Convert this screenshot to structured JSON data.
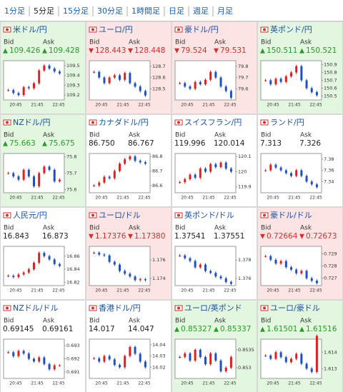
{
  "tabs": [
    {
      "label": "1分足",
      "selected": false
    },
    {
      "label": "5分足",
      "selected": true
    },
    {
      "label": "15分足",
      "selected": false
    },
    {
      "label": "30分足",
      "selected": false
    },
    {
      "label": "1時間足",
      "selected": false
    },
    {
      "label": "日足",
      "selected": false
    },
    {
      "label": "週足",
      "selected": false
    },
    {
      "label": "月足",
      "selected": false
    }
  ],
  "bid_label": "Bid",
  "ask_label": "Ask",
  "time_labels": [
    "20:45",
    "21:45",
    "22:45"
  ],
  "tiles": [
    {
      "name": "米ドル/円",
      "trend": "up",
      "arrow": "▲",
      "bid": "109.426",
      "ask": "109.428",
      "ylim": [
        109.15,
        109.55
      ],
      "yticks": [
        109.2,
        109.3,
        109.4,
        109.5
      ],
      "closes": [
        109.25,
        109.22,
        109.2,
        109.28,
        109.27,
        109.32,
        109.45,
        109.5,
        109.47,
        109.44,
        109.42
      ]
    },
    {
      "name": "ユーロ/円",
      "trend": "down",
      "arrow": "▼",
      "bid": "128.443",
      "ask": "128.448",
      "ylim": [
        128.4,
        128.75
      ],
      "yticks": [
        128.5,
        128.6,
        128.7
      ],
      "closes": [
        128.65,
        128.6,
        128.55,
        128.6,
        128.62,
        128.58,
        128.64,
        128.55,
        128.52,
        128.48,
        128.44
      ]
    },
    {
      "name": "豪ドル/円",
      "trend": "down",
      "arrow": "▼",
      "bid": "79.524",
      "ask": "79.531",
      "ylim": [
        79.5,
        79.85
      ],
      "yticks": [
        79.6,
        79.7,
        79.8
      ],
      "closes": [
        79.65,
        79.62,
        79.6,
        79.66,
        79.64,
        79.68,
        79.75,
        79.7,
        79.62,
        79.58,
        79.52
      ]
    },
    {
      "name": "英ポンド/円",
      "trend": "up",
      "arrow": "▲",
      "bid": "150.511",
      "ask": "150.521",
      "ylim": [
        150.45,
        150.95
      ],
      "yticks": [
        150.5,
        150.6,
        150.7,
        150.8,
        150.9
      ],
      "closes": [
        150.7,
        150.65,
        150.72,
        150.68,
        150.75,
        150.8,
        150.88,
        150.7,
        150.6,
        150.55,
        150.51
      ]
    },
    {
      "name": "NZドル/円",
      "trend": "up",
      "arrow": "▲",
      "bid": "75.663",
      "ask": "75.675",
      "ylim": [
        75.58,
        75.82
      ],
      "yticks": [
        75.6,
        75.7,
        75.8
      ],
      "closes": [
        75.7,
        75.68,
        75.66,
        75.72,
        75.68,
        75.62,
        75.7,
        75.74,
        75.72,
        75.65,
        75.66
      ]
    },
    {
      "name": "カナダドル/円",
      "trend": "none",
      "arrow": null,
      "bid": "86.750",
      "ask": "86.767",
      "ylim": [
        86.55,
        86.82
      ],
      "yticks": [
        86.6,
        86.7,
        86.8
      ],
      "closes": [
        86.6,
        86.62,
        86.66,
        86.65,
        86.7,
        86.75,
        86.78,
        86.8,
        86.77,
        86.76,
        86.75
      ]
    },
    {
      "name": "スイスフラン/円",
      "trend": "none",
      "arrow": null,
      "bid": "119.996",
      "ask": "120.014",
      "ylim": [
        119.86,
        120.12
      ],
      "yticks": [
        119.9,
        120,
        120.1
      ],
      "closes": [
        119.93,
        119.95,
        119.98,
        119.96,
        120.02,
        120.0,
        120.05,
        120.03,
        120.06,
        120.02,
        120.0
      ]
    },
    {
      "name": "ランド/円",
      "trend": "none",
      "arrow": null,
      "bid": "7.313",
      "ask": "7.326",
      "ylim": [
        7.32,
        7.39
      ],
      "yticks": [
        7.34,
        7.36,
        7.38
      ],
      "closes": [
        7.36,
        7.37,
        7.365,
        7.36,
        7.355,
        7.35,
        7.36,
        7.35,
        7.34,
        7.335,
        7.33
      ]
    },
    {
      "name": "人民元/円",
      "trend": "none",
      "arrow": null,
      "bid": "16.843",
      "ask": "16.873",
      "ylim": [
        16.815,
        16.875
      ],
      "yticks": [
        16.82,
        16.84,
        16.86
      ],
      "closes": [
        16.83,
        16.828,
        16.832,
        16.835,
        16.84,
        16.85,
        16.865,
        16.86,
        16.855,
        16.848,
        16.845
      ]
    },
    {
      "name": "ユーロ/ドル",
      "trend": "down",
      "arrow": "▼",
      "bid": "1.17376",
      "ask": "1.17380",
      "ylim": [
        1.1732,
        1.1775
      ],
      "yticks": [
        1.174,
        1.176
      ],
      "closes": [
        1.1768,
        1.1766,
        1.1765,
        1.1758,
        1.1755,
        1.1748,
        1.1745,
        1.1742,
        1.1738,
        1.1739,
        1.1738
      ]
    },
    {
      "name": "英ポンド/ドル",
      "trend": "none",
      "arrow": null,
      "bid": "1.37541",
      "ask": "1.37551",
      "ylim": [
        1.3752,
        1.3795
      ],
      "yticks": [
        1.376,
        1.378
      ],
      "closes": [
        1.3785,
        1.3782,
        1.3779,
        1.3772,
        1.3775,
        1.3768,
        1.3766,
        1.3762,
        1.376,
        1.3756,
        1.3754
      ]
    },
    {
      "name": "豪ドル/ドル",
      "trend": "down",
      "arrow": "▼",
      "bid": "0.72664",
      "ask": "0.72673",
      "ylim": [
        0.7264,
        0.7296
      ],
      "yticks": [
        0.727,
        0.728,
        0.729
      ],
      "closes": [
        0.7288,
        0.7285,
        0.7282,
        0.7284,
        0.7279,
        0.7277,
        0.7274,
        0.7276,
        0.727,
        0.7268,
        0.7266
      ]
    },
    {
      "name": "NZドル/ドル",
      "trend": "none",
      "arrow": null,
      "bid": "0.69145",
      "ask": "0.69161",
      "ylim": [
        0.6905,
        0.6935
      ],
      "yticks": [
        0.691,
        0.692,
        0.693
      ],
      "closes": [
        0.6925,
        0.6922,
        0.6926,
        0.6924,
        0.692,
        0.6918,
        0.6921,
        0.6916,
        0.6912,
        0.6915,
        0.6915
      ]
    },
    {
      "name": "香港ドル/円",
      "trend": "none",
      "arrow": null,
      "bid": "14.017",
      "ask": "14.047",
      "ylim": [
        14.01,
        14.045
      ],
      "yticks": [
        14.02,
        14.03,
        14.04
      ],
      "closes": [
        14.028,
        14.025,
        14.03,
        14.027,
        14.022,
        14.02,
        14.03,
        14.038,
        14.032,
        14.025,
        14.02
      ]
    },
    {
      "name": "ユーロ/英ポンド",
      "trend": "up",
      "arrow": "▲",
      "bid": "0.85327",
      "ask": "0.85337",
      "ylim": [
        0.8527,
        0.8538
      ],
      "yticks": [
        0.853,
        0.8535
      ],
      "closes": [
        0.8533,
        0.8534,
        0.8532,
        0.8535,
        0.8533,
        0.8531,
        0.8534,
        0.8532,
        0.8529,
        0.853,
        0.8533
      ]
    },
    {
      "name": "ユーロ/豪ドル",
      "trend": "up",
      "arrow": "▲",
      "bid": "1.61501",
      "ask": "1.61516",
      "ylim": [
        1.6124,
        1.6148
      ],
      "yticks": [
        1.613,
        1.614
      ],
      "closes": [
        1.6138,
        1.6136,
        1.614,
        1.6137,
        1.6134,
        1.6136,
        1.6139,
        1.6133,
        1.613,
        1.6128,
        1.615
      ]
    }
  ]
}
